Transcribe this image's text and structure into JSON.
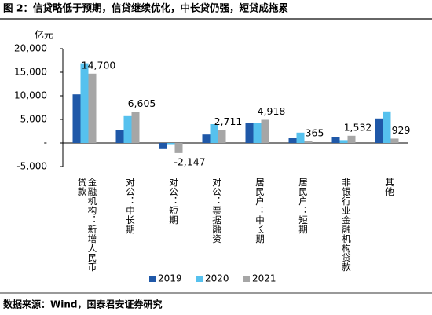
{
  "chart_data": {
    "type": "bar",
    "title": "图 2：信贷略低于预期，信贷继续优化，中长贷仍强，短贷成拖累",
    "ylabel": "亿元",
    "source": "数据来源：Wind，国泰君安证券研究",
    "categories": [
      "金融机构：新增人民币贷款",
      "对公：中长期",
      "对公：短期",
      "对公：票据融资",
      "居民户：中长期",
      "居民户：短期",
      "非银行业金融机构贷款",
      "其他"
    ],
    "series": [
      {
        "name": "2019",
        "color": "#1f58a8",
        "values": [
          10300,
          2800,
          -1300,
          1800,
          4200,
          1000,
          1200,
          5200
        ]
      },
      {
        "name": "2020",
        "color": "#56c1ee",
        "values": [
          16900,
          5700,
          -250,
          4000,
          4200,
          2200,
          600,
          6700
        ]
      },
      {
        "name": "2021",
        "color": "#a6a6a6",
        "values": [
          14700,
          6605,
          -2147,
          2711,
          4918,
          365,
          1532,
          929
        ],
        "value_labels": [
          "14,700",
          "6,605",
          "-2,147",
          "2,711",
          "4,918",
          "365",
          "1,532",
          "929"
        ]
      }
    ],
    "ylim": [
      -5000,
      20000
    ],
    "yticks": [
      {
        "value": -5000,
        "label": "-5,000"
      },
      {
        "value": 0,
        "label": "-"
      },
      {
        "value": 5000,
        "label": "5,000"
      },
      {
        "value": 10000,
        "label": "10,000"
      },
      {
        "value": 15000,
        "label": "15,000"
      },
      {
        "value": 20000,
        "label": "20,000"
      }
    ],
    "legend": "bottom"
  }
}
